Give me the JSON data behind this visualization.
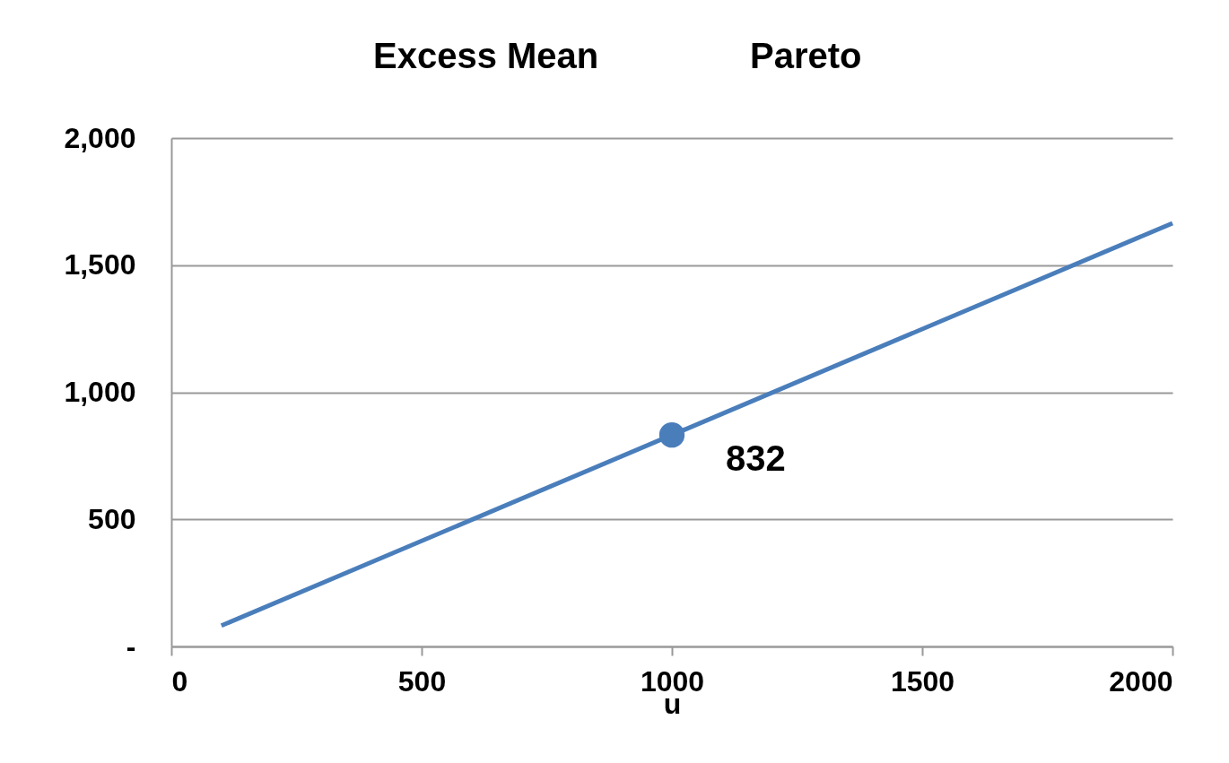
{
  "chart_data": {
    "type": "line",
    "title": "Excess Mean",
    "subtitle": "Pareto",
    "xlabel": "u",
    "xlim": [
      0,
      2000
    ],
    "xticks": [
      0,
      500,
      1000,
      1500,
      2000
    ],
    "ylim": [
      0,
      2000
    ],
    "yticks": [
      {
        "value": 0,
        "label": "-"
      },
      {
        "value": 500,
        "label": "500"
      },
      {
        "value": 1000,
        "label": "1,000"
      },
      {
        "value": 1500,
        "label": "1,500"
      },
      {
        "value": 2000,
        "label": "2,000"
      }
    ],
    "grid": "y",
    "series": [
      {
        "color": "#4a7ebb",
        "x": [
          100,
          2000
        ],
        "values": [
          82,
          1665
        ]
      },
      {
        "type": "scatter",
        "color": "#4a7ebb",
        "x": [
          1000
        ],
        "values": [
          832
        ],
        "value_labels": [
          "832"
        ]
      }
    ]
  }
}
